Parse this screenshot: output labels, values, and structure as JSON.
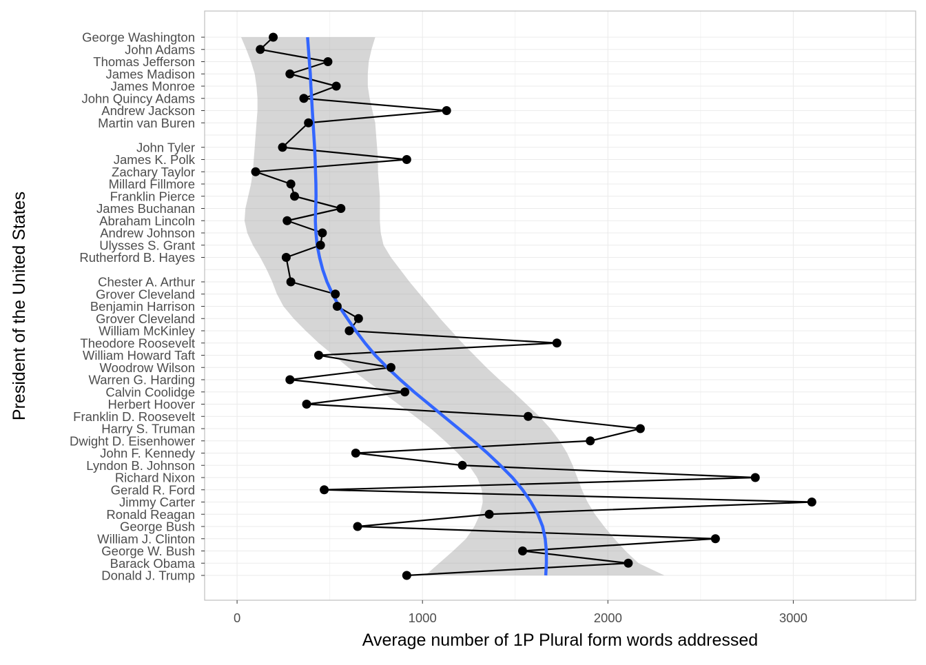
{
  "chart_data": {
    "type": "line",
    "xlabel": "Average number of 1P Plural form words addressed",
    "ylabel": "President of the United States",
    "xlim": [
      -175,
      3660
    ],
    "x_ticks": [
      0,
      1000,
      2000,
      3000
    ],
    "x_minor_ticks": [
      500,
      1500,
      2500,
      3500
    ],
    "grid": true,
    "presidents": [
      "George Washington",
      "John Adams",
      "Thomas Jefferson",
      "James Madison",
      "James Monroe",
      "John Quincy Adams",
      "Andrew Jackson",
      "Martin van Buren",
      "",
      "John Tyler",
      "James K. Polk",
      "Zachary Taylor",
      "Millard Fillmore",
      "Franklin Pierce",
      "James Buchanan",
      "Abraham Lincoln",
      "Andrew Johnson",
      "Ulysses S. Grant",
      "Rutherford B. Hayes",
      "",
      "Chester A. Arthur",
      "Grover Cleveland",
      "Benjamin Harrison",
      "Grover Cleveland",
      "William McKinley",
      "Theodore Roosevelt",
      "William Howard Taft",
      "Woodrow Wilson",
      "Warren G. Harding",
      "Calvin Coolidge",
      "Herbert Hoover",
      "Franklin D. Roosevelt",
      "Harry S. Truman",
      "Dwight D. Eisenhower",
      "John F. Kennedy",
      "Lyndon B. Johnson",
      "Richard Nixon",
      "Gerald R. Ford",
      "Jimmy Carter",
      "Ronald Reagan",
      "George Bush",
      "William J. Clinton",
      "George W. Bush",
      "Barack Obama",
      "Donald J. Trump"
    ],
    "series": [
      {
        "values": [
          195,
          125,
          490,
          285,
          535,
          360,
          1130,
          385,
          null,
          245,
          915,
          100,
          290,
          310,
          560,
          270,
          460,
          450,
          265,
          null,
          290,
          530,
          540,
          655,
          605,
          1725,
          440,
          830,
          285,
          905,
          375,
          1570,
          2175,
          1905,
          640,
          1215,
          2795,
          470,
          3100,
          1360,
          650,
          2580,
          1540,
          2110,
          915
        ]
      }
    ],
    "smooth": {
      "color": "#3366ff",
      "values": [
        380,
        385,
        390,
        395,
        398,
        402,
        406,
        410,
        414,
        418,
        421,
        423,
        425,
        426,
        424,
        422,
        425,
        432,
        445,
        462,
        485,
        515,
        550,
        595,
        640,
        690,
        745,
        810,
        880,
        955,
        1035,
        1115,
        1195,
        1275,
        1350,
        1420,
        1485,
        1540,
        1585,
        1622,
        1648,
        1662,
        1668,
        1668,
        1665
      ],
      "band_lower": [
        22,
        50,
        75,
        95,
        105,
        110,
        110,
        105,
        100,
        95,
        90,
        85,
        75,
        60,
        45,
        40,
        55,
        85,
        125,
        160,
        190,
        215,
        250,
        305,
        370,
        440,
        520,
        600,
        690,
        780,
        870,
        960,
        1045,
        1120,
        1190,
        1250,
        1295,
        1320,
        1325,
        1310,
        1280,
        1235,
        1165,
        1090,
        1015
      ],
      "band_upper": [
        745,
        725,
        710,
        705,
        705,
        715,
        730,
        745,
        750,
        755,
        760,
        760,
        765,
        770,
        770,
        770,
        775,
        790,
        830,
        880,
        930,
        985,
        1040,
        1095,
        1155,
        1215,
        1280,
        1345,
        1415,
        1490,
        1560,
        1630,
        1690,
        1740,
        1780,
        1810,
        1835,
        1860,
        1890,
        1930,
        1980,
        2035,
        2095,
        2165,
        2305
      ]
    }
  }
}
